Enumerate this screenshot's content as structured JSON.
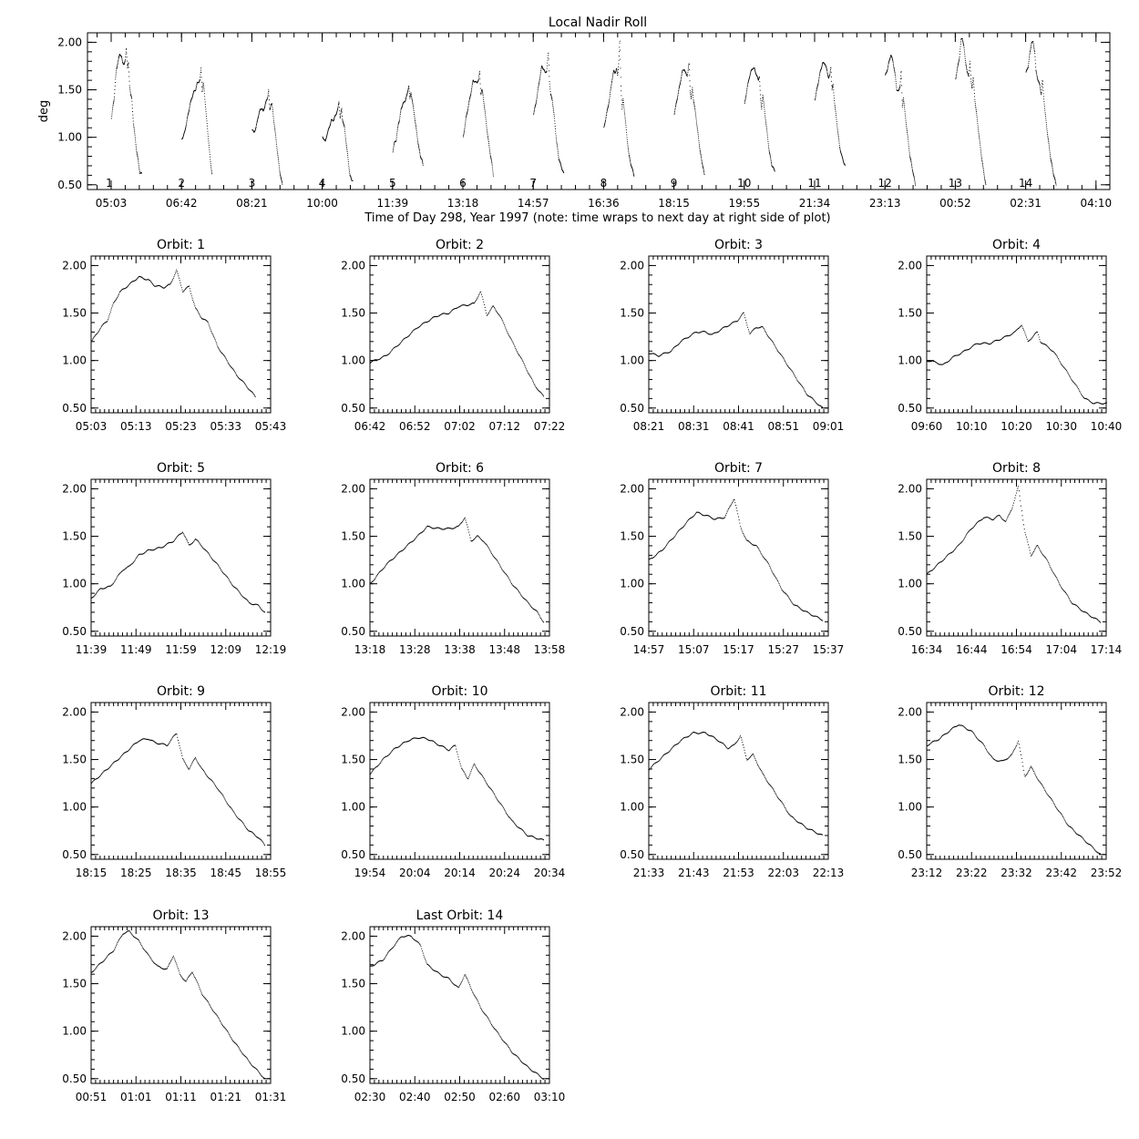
{
  "chart_data": {
    "type": "scatter",
    "overview": {
      "title": "Local Nadir Roll",
      "ylabel": "deg",
      "xlabel": "Time of Day 298, Year 1997 (note: time wraps to next day at right side of plot)",
      "ylim": [
        0.45,
        2.1
      ],
      "yticks": [
        "0.50",
        "1.00",
        "1.50",
        "2.00"
      ],
      "xtick_labels": [
        "05:03",
        "06:42",
        "08:21",
        "10:00",
        "11:39",
        "13:18",
        "14:57",
        "16:36",
        "18:15",
        "19:55",
        "21:34",
        "23:13",
        "00:52",
        "02:31",
        "04:10"
      ],
      "orbit_markers": [
        "1",
        "2",
        "3",
        "4",
        "5",
        "6",
        "7",
        "8",
        "9",
        "10",
        "11",
        "12",
        "13",
        "14"
      ],
      "grid": false
    },
    "orbits": [
      {
        "title": "Orbit: 1",
        "xticks": [
          "05:03",
          "05:13",
          "05:23",
          "05:33",
          "05:43"
        ],
        "profile": [
          [
            0,
            1.2
          ],
          [
            3,
            1.35
          ],
          [
            5,
            1.42
          ],
          [
            7,
            1.6
          ],
          [
            9,
            1.72
          ],
          [
            12,
            1.8
          ],
          [
            15,
            1.88
          ],
          [
            18,
            1.85
          ],
          [
            20,
            1.79
          ],
          [
            23,
            1.77
          ],
          [
            25,
            1.8
          ],
          [
            27,
            1.95
          ],
          [
            29,
            1.73
          ],
          [
            31,
            1.78
          ],
          [
            33,
            1.55
          ],
          [
            35,
            1.45
          ],
          [
            37,
            1.4
          ],
          [
            40,
            1.15
          ],
          [
            43,
            1.0
          ],
          [
            46,
            0.85
          ],
          [
            49,
            0.74
          ],
          [
            52,
            0.62
          ]
        ]
      },
      {
        "title": "Orbit: 2",
        "xticks": [
          "06:42",
          "06:52",
          "07:02",
          "07:12",
          "07:22"
        ],
        "profile": [
          [
            0,
            0.98
          ],
          [
            5,
            1.05
          ],
          [
            10,
            1.2
          ],
          [
            15,
            1.35
          ],
          [
            20,
            1.45
          ],
          [
            22,
            1.48
          ],
          [
            25,
            1.5
          ],
          [
            28,
            1.57
          ],
          [
            30,
            1.58
          ],
          [
            33,
            1.6
          ],
          [
            35,
            1.73
          ],
          [
            37,
            1.48
          ],
          [
            39,
            1.57
          ],
          [
            41,
            1.48
          ],
          [
            45,
            1.2
          ],
          [
            49,
            0.95
          ],
          [
            52,
            0.75
          ],
          [
            55,
            0.62
          ]
        ]
      },
      {
        "title": "Orbit: 3",
        "xticks": [
          "08:21",
          "08:31",
          "08:41",
          "08:51",
          "09:01"
        ],
        "profile": [
          [
            0,
            1.08
          ],
          [
            3,
            1.05
          ],
          [
            7,
            1.1
          ],
          [
            10,
            1.2
          ],
          [
            15,
            1.3
          ],
          [
            18,
            1.3
          ],
          [
            20,
            1.27
          ],
          [
            24,
            1.35
          ],
          [
            28,
            1.42
          ],
          [
            30,
            1.5
          ],
          [
            32,
            1.28
          ],
          [
            34,
            1.35
          ],
          [
            36,
            1.35
          ],
          [
            40,
            1.15
          ],
          [
            45,
            0.9
          ],
          [
            50,
            0.65
          ],
          [
            55,
            0.5
          ]
        ]
      },
      {
        "title": "Orbit: 4",
        "xticks": [
          "09:60",
          "10:10",
          "10:20",
          "10:30",
          "10:40"
        ],
        "profile": [
          [
            0,
            1.0
          ],
          [
            3,
            0.98
          ],
          [
            5,
            0.95
          ],
          [
            8,
            1.03
          ],
          [
            12,
            1.1
          ],
          [
            16,
            1.18
          ],
          [
            20,
            1.18
          ],
          [
            25,
            1.25
          ],
          [
            28,
            1.3
          ],
          [
            30,
            1.38
          ],
          [
            32,
            1.2
          ],
          [
            35,
            1.3
          ],
          [
            36,
            1.2
          ],
          [
            40,
            1.1
          ],
          [
            45,
            0.85
          ],
          [
            50,
            0.6
          ],
          [
            53,
            0.55
          ],
          [
            57,
            0.55
          ]
        ]
      },
      {
        "title": "Orbit: 5",
        "xticks": [
          "11:39",
          "11:49",
          "11:59",
          "12:09",
          "12:19"
        ],
        "profile": [
          [
            0,
            0.85
          ],
          [
            3,
            0.95
          ],
          [
            6,
            0.97
          ],
          [
            10,
            1.15
          ],
          [
            12,
            1.18
          ],
          [
            15,
            1.3
          ],
          [
            18,
            1.35
          ],
          [
            22,
            1.38
          ],
          [
            26,
            1.45
          ],
          [
            29,
            1.55
          ],
          [
            31,
            1.4
          ],
          [
            33,
            1.47
          ],
          [
            35,
            1.4
          ],
          [
            40,
            1.2
          ],
          [
            45,
            0.98
          ],
          [
            50,
            0.8
          ],
          [
            53,
            0.77
          ],
          [
            55,
            0.7
          ]
        ]
      },
      {
        "title": "Orbit: 6",
        "xticks": [
          "13:18",
          "13:28",
          "13:38",
          "13:48",
          "13:58"
        ],
        "profile": [
          [
            0,
            1.0
          ],
          [
            5,
            1.2
          ],
          [
            10,
            1.35
          ],
          [
            15,
            1.5
          ],
          [
            18,
            1.6
          ],
          [
            22,
            1.58
          ],
          [
            25,
            1.58
          ],
          [
            28,
            1.6
          ],
          [
            30,
            1.7
          ],
          [
            32,
            1.45
          ],
          [
            34,
            1.5
          ],
          [
            36,
            1.45
          ],
          [
            40,
            1.25
          ],
          [
            45,
            1.0
          ],
          [
            50,
            0.8
          ],
          [
            53,
            0.7
          ],
          [
            55,
            0.6
          ]
        ]
      },
      {
        "title": "Orbit: 7",
        "xticks": [
          "14:57",
          "15:07",
          "15:17",
          "15:27",
          "15:37"
        ],
        "profile": [
          [
            0,
            1.25
          ],
          [
            4,
            1.35
          ],
          [
            8,
            1.5
          ],
          [
            12,
            1.65
          ],
          [
            15,
            1.75
          ],
          [
            18,
            1.72
          ],
          [
            21,
            1.68
          ],
          [
            24,
            1.7
          ],
          [
            27,
            1.9
          ],
          [
            29,
            1.6
          ],
          [
            31,
            1.45
          ],
          [
            34,
            1.4
          ],
          [
            38,
            1.2
          ],
          [
            42,
            0.95
          ],
          [
            46,
            0.78
          ],
          [
            50,
            0.7
          ],
          [
            55,
            0.62
          ]
        ]
      },
      {
        "title": "Orbit: 8",
        "xticks": [
          "16:34",
          "16:44",
          "16:54",
          "17:04",
          "17:14"
        ],
        "profile": [
          [
            0,
            1.1
          ],
          [
            5,
            1.25
          ],
          [
            10,
            1.4
          ],
          [
            14,
            1.58
          ],
          [
            18,
            1.7
          ],
          [
            21,
            1.68
          ],
          [
            23,
            1.72
          ],
          [
            25,
            1.65
          ],
          [
            27,
            1.8
          ],
          [
            29,
            2.02
          ],
          [
            31,
            1.55
          ],
          [
            33,
            1.3
          ],
          [
            35,
            1.4
          ],
          [
            38,
            1.25
          ],
          [
            42,
            1.0
          ],
          [
            46,
            0.8
          ],
          [
            50,
            0.7
          ],
          [
            55,
            0.6
          ]
        ]
      },
      {
        "title": "Orbit: 9",
        "xticks": [
          "18:15",
          "18:25",
          "18:35",
          "18:45",
          "18:55"
        ],
        "profile": [
          [
            0,
            1.25
          ],
          [
            5,
            1.4
          ],
          [
            10,
            1.55
          ],
          [
            15,
            1.7
          ],
          [
            18,
            1.72
          ],
          [
            20,
            1.68
          ],
          [
            24,
            1.65
          ],
          [
            27,
            1.78
          ],
          [
            29,
            1.5
          ],
          [
            31,
            1.4
          ],
          [
            33,
            1.52
          ],
          [
            35,
            1.4
          ],
          [
            40,
            1.2
          ],
          [
            45,
            0.95
          ],
          [
            50,
            0.75
          ],
          [
            53,
            0.68
          ],
          [
            55,
            0.6
          ]
        ]
      },
      {
        "title": "Orbit: 10",
        "xticks": [
          "19:54",
          "20:04",
          "20:14",
          "20:24",
          "20:34"
        ],
        "profile": [
          [
            0,
            1.35
          ],
          [
            4,
            1.5
          ],
          [
            8,
            1.62
          ],
          [
            12,
            1.7
          ],
          [
            15,
            1.73
          ],
          [
            18,
            1.72
          ],
          [
            22,
            1.65
          ],
          [
            25,
            1.6
          ],
          [
            27,
            1.65
          ],
          [
            29,
            1.4
          ],
          [
            31,
            1.3
          ],
          [
            33,
            1.45
          ],
          [
            36,
            1.3
          ],
          [
            40,
            1.1
          ],
          [
            45,
            0.85
          ],
          [
            50,
            0.7
          ],
          [
            55,
            0.65
          ]
        ]
      },
      {
        "title": "Orbit: 11",
        "xticks": [
          "21:33",
          "21:43",
          "21:53",
          "22:03",
          "22:13"
        ],
        "profile": [
          [
            0,
            1.4
          ],
          [
            5,
            1.55
          ],
          [
            10,
            1.7
          ],
          [
            14,
            1.78
          ],
          [
            18,
            1.78
          ],
          [
            22,
            1.7
          ],
          [
            25,
            1.62
          ],
          [
            27,
            1.65
          ],
          [
            29,
            1.75
          ],
          [
            31,
            1.5
          ],
          [
            33,
            1.55
          ],
          [
            36,
            1.35
          ],
          [
            40,
            1.15
          ],
          [
            45,
            0.9
          ],
          [
            50,
            0.78
          ],
          [
            55,
            0.7
          ]
        ]
      },
      {
        "title": "Orbit: 12",
        "xticks": [
          "23:12",
          "23:22",
          "23:32",
          "23:42",
          "23:52"
        ],
        "profile": [
          [
            0,
            1.65
          ],
          [
            4,
            1.72
          ],
          [
            7,
            1.8
          ],
          [
            10,
            1.87
          ],
          [
            14,
            1.8
          ],
          [
            18,
            1.65
          ],
          [
            21,
            1.5
          ],
          [
            24,
            1.48
          ],
          [
            27,
            1.55
          ],
          [
            29,
            1.7
          ],
          [
            31,
            1.32
          ],
          [
            33,
            1.42
          ],
          [
            36,
            1.25
          ],
          [
            40,
            1.05
          ],
          [
            45,
            0.8
          ],
          [
            50,
            0.65
          ],
          [
            55,
            0.5
          ]
        ]
      },
      {
        "title": "Orbit: 13",
        "xticks": [
          "00:51",
          "01:01",
          "01:11",
          "01:21",
          "01:31"
        ],
        "profile": [
          [
            0,
            1.62
          ],
          [
            4,
            1.75
          ],
          [
            7,
            1.85
          ],
          [
            10,
            2.03
          ],
          [
            12,
            2.05
          ],
          [
            15,
            1.95
          ],
          [
            18,
            1.8
          ],
          [
            21,
            1.68
          ],
          [
            24,
            1.65
          ],
          [
            26,
            1.8
          ],
          [
            28,
            1.6
          ],
          [
            30,
            1.52
          ],
          [
            32,
            1.63
          ],
          [
            35,
            1.4
          ],
          [
            40,
            1.15
          ],
          [
            45,
            0.9
          ],
          [
            50,
            0.68
          ],
          [
            55,
            0.5
          ]
        ]
      },
      {
        "title": "Last Orbit: 14",
        "xticks": [
          "02:30",
          "02:40",
          "02:50",
          "02:60",
          "03:10"
        ],
        "profile": [
          [
            0,
            1.68
          ],
          [
            4,
            1.75
          ],
          [
            7,
            1.88
          ],
          [
            10,
            2.0
          ],
          [
            13,
            2.0
          ],
          [
            16,
            1.9
          ],
          [
            18,
            1.7
          ],
          [
            22,
            1.6
          ],
          [
            25,
            1.55
          ],
          [
            28,
            1.45
          ],
          [
            30,
            1.6
          ],
          [
            32,
            1.45
          ],
          [
            35,
            1.25
          ],
          [
            40,
            1.0
          ],
          [
            45,
            0.78
          ],
          [
            50,
            0.62
          ],
          [
            55,
            0.5
          ]
        ]
      }
    ]
  }
}
